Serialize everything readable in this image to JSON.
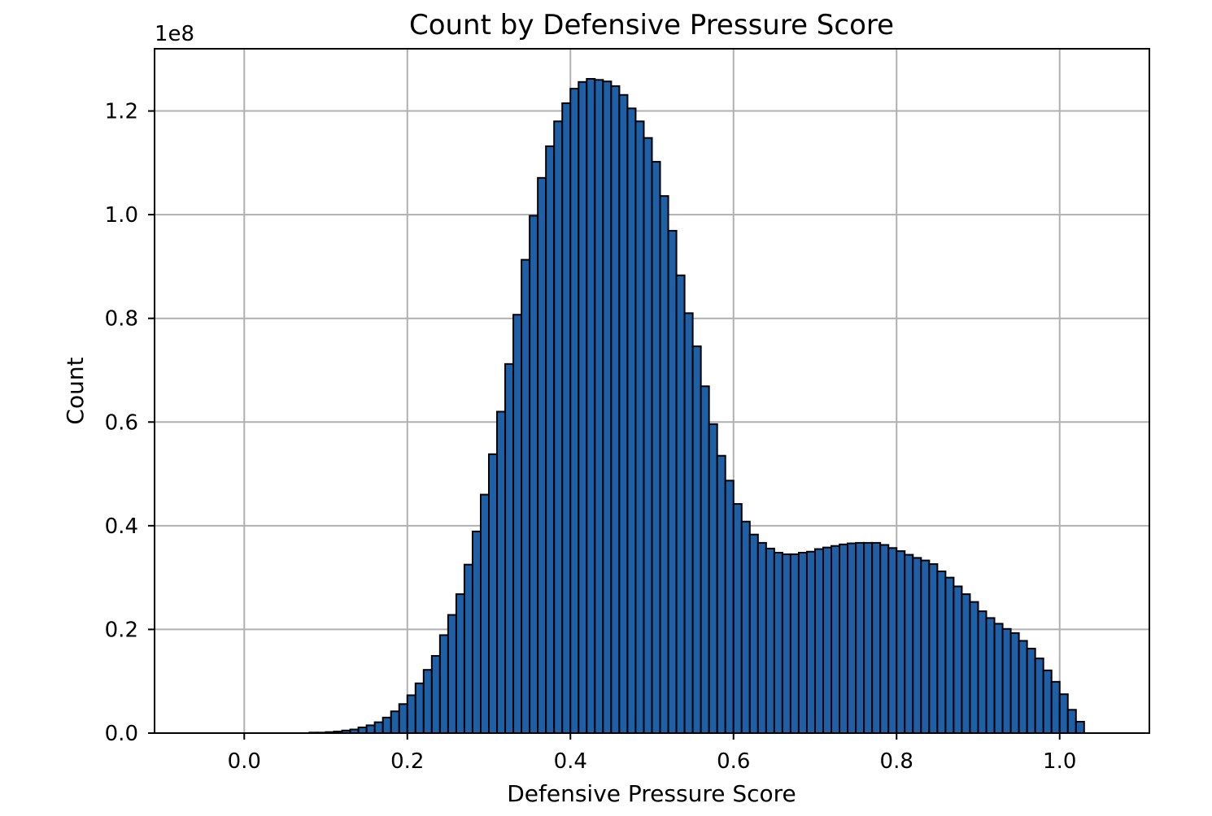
{
  "chart_data": {
    "type": "bar",
    "title": "Count by Defensive Pressure Score",
    "xlabel": "Defensive Pressure Score",
    "ylabel": "Count",
    "y_scale_label": "1e8",
    "xlim": [
      -0.11,
      1.11
    ],
    "ylim": [
      0,
      1.32
    ],
    "x_ticks": [
      "0.0",
      "0.2",
      "0.4",
      "0.6",
      "0.8",
      "1.0"
    ],
    "y_ticks": [
      "0.0",
      "0.2",
      "0.4",
      "0.6",
      "0.8",
      "1.0",
      "1.2"
    ],
    "grid": true,
    "bin_width": 0.01,
    "bin_start": 0.0,
    "values": [
      0.0,
      0.0,
      0.0,
      0.0,
      0.0,
      0.0,
      0.0,
      0.0,
      0.001,
      0.001,
      0.002,
      0.003,
      0.005,
      0.007,
      0.011,
      0.015,
      0.021,
      0.03,
      0.042,
      0.056,
      0.073,
      0.096,
      0.122,
      0.149,
      0.189,
      0.228,
      0.268,
      0.325,
      0.389,
      0.46,
      0.538,
      0.62,
      0.712,
      0.807,
      0.913,
      0.998,
      1.071,
      1.132,
      1.18,
      1.215,
      1.243,
      1.256,
      1.262,
      1.26,
      1.257,
      1.248,
      1.231,
      1.205,
      1.18,
      1.148,
      1.102,
      1.036,
      0.969,
      0.883,
      0.81,
      0.746,
      0.669,
      0.596,
      0.535,
      0.487,
      0.442,
      0.408,
      0.383,
      0.367,
      0.356,
      0.348,
      0.345,
      0.345,
      0.348,
      0.35,
      0.355,
      0.358,
      0.361,
      0.364,
      0.366,
      0.367,
      0.367,
      0.367,
      0.363,
      0.357,
      0.351,
      0.344,
      0.338,
      0.333,
      0.326,
      0.312,
      0.3,
      0.283,
      0.268,
      0.253,
      0.235,
      0.222,
      0.211,
      0.201,
      0.193,
      0.178,
      0.163,
      0.144,
      0.121,
      0.099,
      0.075,
      0.045,
      0.022
    ]
  }
}
